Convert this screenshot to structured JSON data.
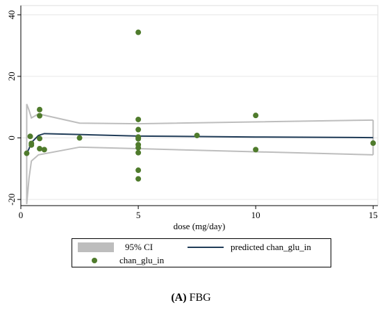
{
  "chart_data": {
    "type": "scatter",
    "xlabel": "dose (mg/day)",
    "ylabel": "",
    "xlim": [
      0,
      15.2
    ],
    "ylim": [
      -22,
      43
    ],
    "x_ticks": [
      0,
      5,
      10,
      15
    ],
    "y_ticks": [
      -20,
      0,
      20,
      40
    ],
    "grid": true,
    "legend_placement": "bottom",
    "series": [
      {
        "name": "95% CI",
        "kind": "band",
        "color": "#bdbdbd",
        "upper": [
          [
            0.25,
            11
          ],
          [
            0.35,
            9
          ],
          [
            0.45,
            6.5
          ],
          [
            0.75,
            7.8
          ],
          [
            2.5,
            4.8
          ],
          [
            5,
            4.6
          ],
          [
            15,
            5.8
          ]
        ],
        "lower": [
          [
            0.25,
            -21.5
          ],
          [
            0.35,
            -13
          ],
          [
            0.45,
            -7.5
          ],
          [
            0.75,
            -5.5
          ],
          [
            2.5,
            -3
          ],
          [
            5,
            -3.5
          ],
          [
            15,
            -5.5
          ]
        ]
      },
      {
        "name": "predicted chan_glu_in",
        "kind": "line",
        "color": "#1f3b57",
        "points": [
          [
            0.25,
            -5
          ],
          [
            0.35,
            -3.5
          ],
          [
            0.45,
            -1.5
          ],
          [
            0.75,
            0.8
          ],
          [
            1.0,
            1.4
          ],
          [
            2.5,
            1.1
          ],
          [
            5,
            0.6
          ],
          [
            10,
            0.3
          ],
          [
            15,
            0.1
          ]
        ]
      },
      {
        "name": "chan_glu_in",
        "kind": "scatter",
        "color": "#4f7b2c",
        "points": [
          [
            0.25,
            -5
          ],
          [
            0.4,
            0.5
          ],
          [
            0.45,
            -1.8
          ],
          [
            0.45,
            -2.3
          ],
          [
            0.8,
            9.2
          ],
          [
            0.8,
            7.2
          ],
          [
            0.8,
            -0.2
          ],
          [
            0.8,
            -3.5
          ],
          [
            1.0,
            -3.8
          ],
          [
            2.5,
            0
          ],
          [
            5,
            34.3
          ],
          [
            5,
            6
          ],
          [
            5,
            2.7
          ],
          [
            5,
            0.3
          ],
          [
            5,
            -0.3
          ],
          [
            5,
            -2.2
          ],
          [
            5,
            -3.2
          ],
          [
            5,
            -4.8
          ],
          [
            5,
            -10.5
          ],
          [
            5,
            -13.3
          ],
          [
            7.5,
            0.8
          ],
          [
            10,
            7.3
          ],
          [
            10,
            -3.8
          ],
          [
            15,
            -1.7
          ]
        ]
      }
    ]
  },
  "legend": {
    "ci_label": "95% CI",
    "line_label": "predicted chan_glu_in",
    "dot_label": "chan_glu_in"
  },
  "caption": {
    "panel": "(A)",
    "text": " FBG"
  }
}
